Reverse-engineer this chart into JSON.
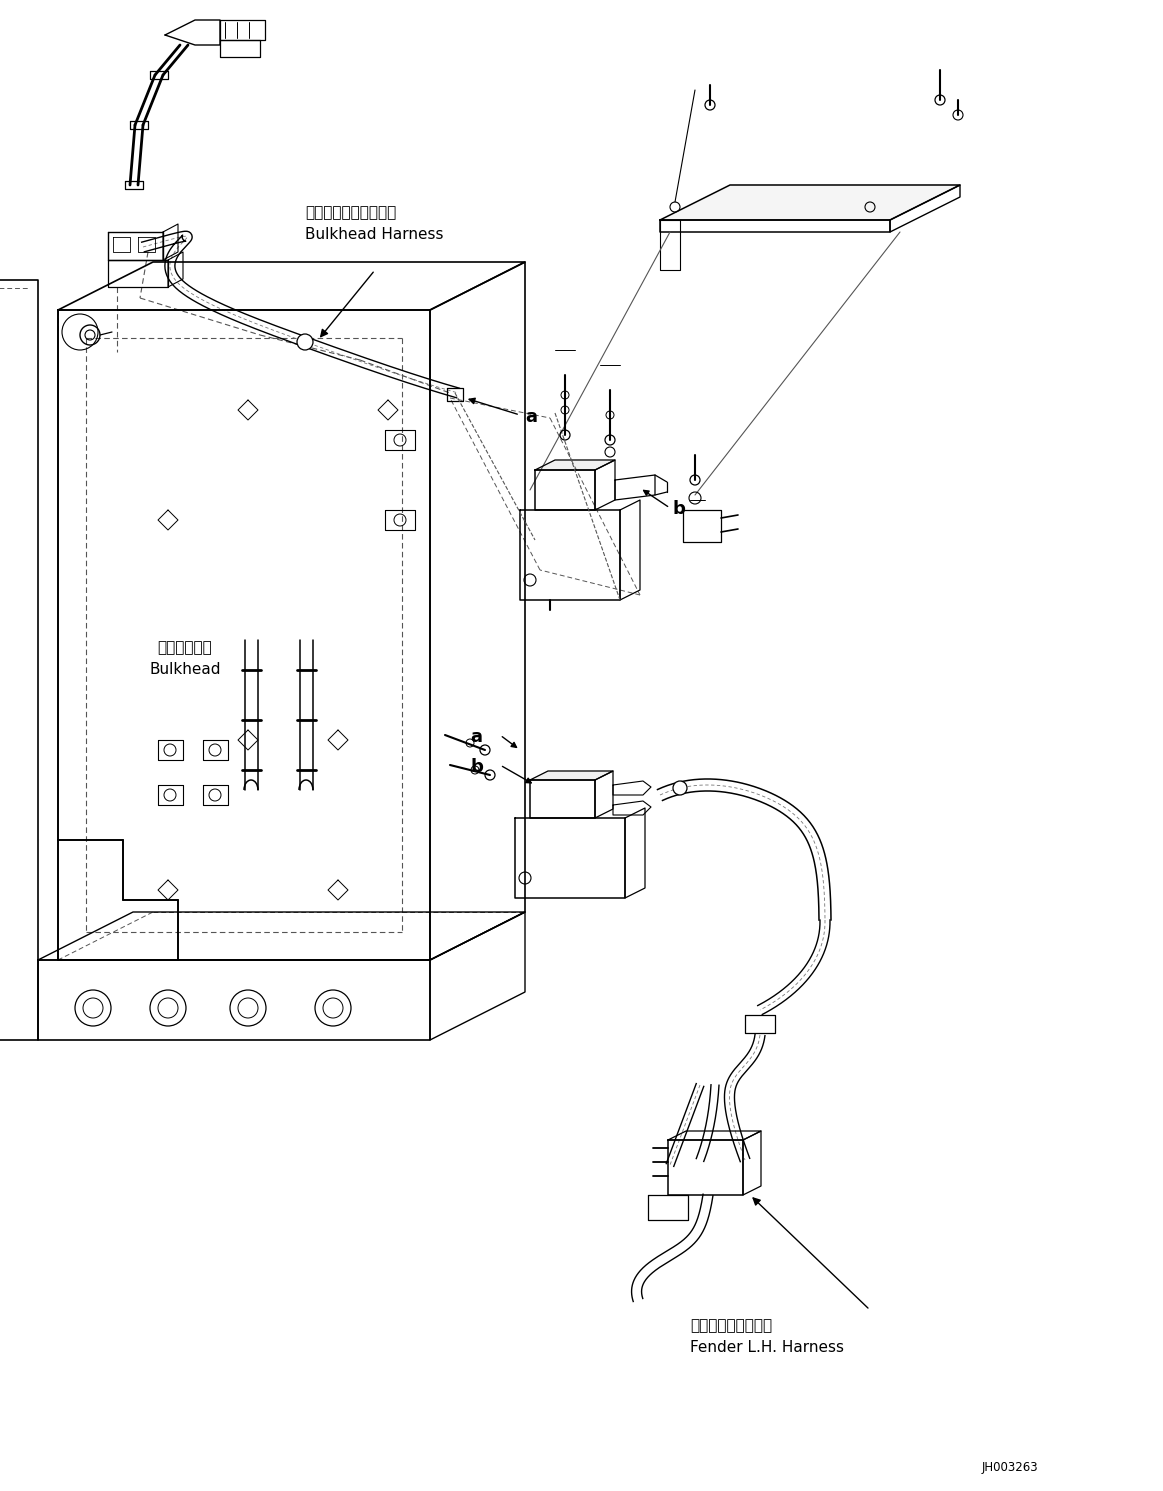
{
  "bg_color": "#ffffff",
  "fig_width": 11.63,
  "fig_height": 14.91,
  "part_code": "JH003263",
  "labels": {
    "bulkhead_harness_jp": "バルクヘッドハーネス",
    "bulkhead_harness_en": "Bulkhead Harness",
    "bulkhead_jp": "バルクヘッド",
    "bulkhead_en": "Bulkhead",
    "fender_jp": "フェンダ左ハーネス",
    "fender_en": "Fender L.H. Harness",
    "label_a": "a",
    "label_b": "b"
  }
}
